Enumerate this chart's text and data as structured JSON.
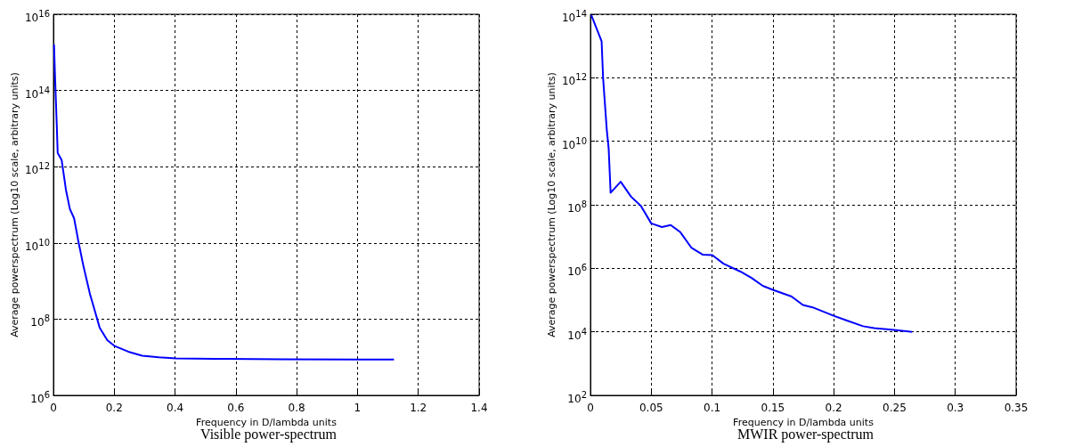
{
  "chart_data": [
    {
      "type": "line",
      "title": "Visible power-spectrum",
      "xlabel": "Frequency in D/lambda units",
      "ylabel": "Average powerspectrum (Log10 scale, arbitrary units)",
      "log": "y",
      "grid": true,
      "marker": "none",
      "line_style": "solid",
      "xlim": [
        0,
        1.4
      ],
      "xticks": [
        0,
        0.2,
        0.4,
        0.6,
        0.8,
        1,
        1.2,
        1.4
      ],
      "ylim": [
        1000000.0,
        1e+16
      ],
      "yticks": [
        {
          "value": 1000000.0,
          "label": "10$^{6}$"
        },
        {
          "value": 100000000.0,
          "label": "10$^{8}$"
        },
        {
          "value": 10000000000.0,
          "label": "10$^{10}$"
        },
        {
          "value": 1000000000000.0,
          "label": "10$^{12}$"
        },
        {
          "value": 100000000000000.0,
          "label": "10$^{14}$"
        },
        {
          "value": 1e+16,
          "label": "10$^{16}$"
        }
      ],
      "series": [
        {
          "color": "#0000ff",
          "x": [
            0.002,
            0.005,
            0.008,
            0.011,
            0.014,
            0.027,
            0.041,
            0.054,
            0.068,
            0.083,
            0.099,
            0.12,
            0.152,
            0.177,
            0.2,
            0.246,
            0.292,
            0.347,
            0.403,
            0.53,
            0.75,
            1.0,
            1.12
          ],
          "values": [
            1600000000000000.0,
            260000000000000.0,
            56000000000000.0,
            12000000000000.0,
            2300000000000.0,
            1500000000000.0,
            250000000000.0,
            78000000000.0,
            44000000000.0,
            10000000000.0,
            2400000000.0,
            460000000.0,
            60000000.0,
            28000000.0,
            20000000.0,
            14000000.0,
            11000000.0,
            10000000.0,
            9300000.0,
            9100000.0,
            8800000.0,
            8700000.0,
            8700000.0
          ]
        }
      ]
    },
    {
      "type": "line",
      "title": "MWIR power-spectrum",
      "xlabel": "Frequency in D/lambda units",
      "ylabel": "Average powerspectrum (Log10 scale, arbitrary units)",
      "log": "y",
      "grid": true,
      "marker": "none",
      "line_style": "solid",
      "xlim": [
        0,
        0.35
      ],
      "xticks": [
        0,
        0.05,
        0.1,
        0.15,
        0.2,
        0.25,
        0.3,
        0.35
      ],
      "ylim": [
        100.0,
        100000000000000.0
      ],
      "yticks": [
        {
          "value": 100.0,
          "label": "10$^{2}$"
        },
        {
          "value": 10000.0,
          "label": "10$^{4}$"
        },
        {
          "value": 1000000.0,
          "label": "10$^{6}$"
        },
        {
          "value": 100000000.0,
          "label": "10$^{8}$"
        },
        {
          "value": 10000000000.0,
          "label": "10$^{10}$"
        },
        {
          "value": 1000000000000.0,
          "label": "10$^{12}$"
        },
        {
          "value": 100000000000000.0,
          "label": "10$^{14}$"
        }
      ],
      "series": [
        {
          "color": "#0000ff",
          "x": [
            0.0007,
            0.0092,
            0.0104,
            0.0134,
            0.015,
            0.0166,
            0.0249,
            0.0334,
            0.0415,
            0.05,
            0.0588,
            0.066,
            0.0737,
            0.0829,
            0.0922,
            0.1002,
            0.1094,
            0.1233,
            0.1325,
            0.1417,
            0.15,
            0.1654,
            0.1747,
            0.1827,
            0.2,
            0.2104,
            0.2242,
            0.2334,
            0.2495,
            0.2645
          ],
          "values": [
            95000000000000.0,
            14000000000000.0,
            1000000000000.0,
            24000000000.0,
            5900000000.0,
            240000000.0,
            530000000.0,
            180000000.0,
            92000000.0,
            26000000.0,
            20000000.0,
            23000000.0,
            14000000.0,
            4500000.0,
            2700000.0,
            2600000.0,
            1400000.0,
            790000.0,
            500000.0,
            280000.0,
            210000.0,
            130000.0,
            70000.0,
            59000.0,
            32000.0,
            23000.0,
            15000.0,
            13000.0,
            11500.0,
            10000.0
          ]
        }
      ]
    }
  ]
}
